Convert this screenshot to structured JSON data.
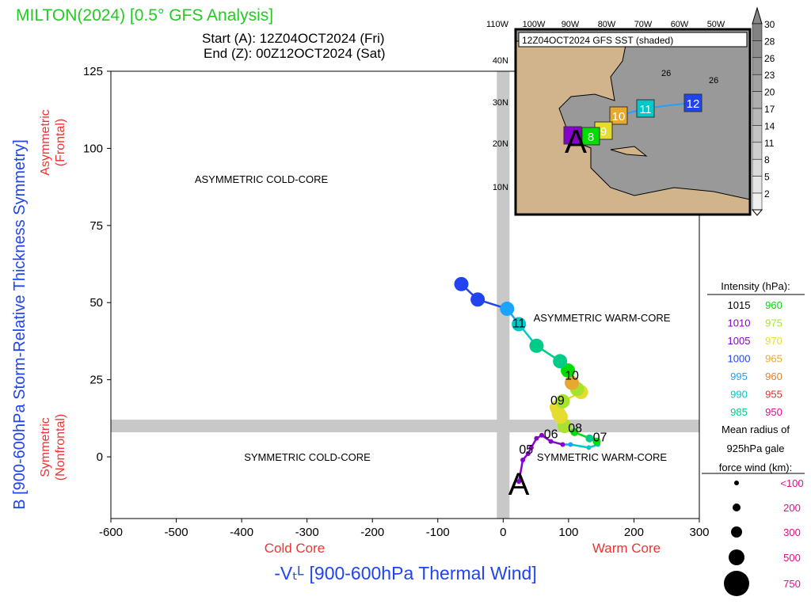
{
  "title": "MILTON(2024) [0.5° GFS Analysis]",
  "start": "Start (A): 12Z04OCT2024 (Fri)",
  "end": "End (Z): 00Z12OCT2024 (Sat)",
  "chart_data": {
    "type": "scatter",
    "xlabel": "-Vₜᴸ [900-600hPa Thermal Wind]",
    "ylabel": "B [900-600hPa Storm-Relative Thickness Symmetry]",
    "xlim": [
      -600,
      300
    ],
    "ylim": [
      -20,
      125
    ],
    "xticks": [
      -600,
      -500,
      -400,
      -300,
      -200,
      -100,
      0,
      100,
      200,
      300
    ],
    "yticks": [
      0,
      25,
      50,
      75,
      100,
      125
    ],
    "x_left_note": "Cold Core",
    "x_right_note": "Warm Core",
    "y_top_note": [
      "Asymmetric",
      "(Frontal)"
    ],
    "y_bottom_note": [
      "Symmetric",
      "(Nonfrontal)"
    ],
    "quadrants": {
      "tl": "ASYMMETRIC COLD-CORE",
      "tr": "ASYMMETRIC WARM-CORE",
      "bl": "SYMMETRIC COLD-CORE",
      "br": "SYMMETRIC WARM-CORE"
    },
    "start_marker": "A",
    "track": [
      {
        "x": 24,
        "y": -8,
        "c": "#8800cc",
        "r": 1
      },
      {
        "x": 30,
        "y": -1,
        "c": "#8800cc",
        "r": 1
      },
      {
        "x": 38,
        "y": 1,
        "c": "#8800cc",
        "r": 1
      },
      {
        "x": 43,
        "y": 3,
        "c": "#8800cc",
        "r": 1
      },
      {
        "x": 51,
        "y": 6,
        "c": "#8800cc",
        "r": 1
      },
      {
        "x": 59,
        "y": 7,
        "c": "#8800cc",
        "r": 1
      },
      {
        "x": 73,
        "y": 5,
        "c": "#8800cc",
        "r": 1
      },
      {
        "x": 91,
        "y": 4,
        "c": "#8800cc",
        "r": 1
      },
      {
        "x": 103,
        "y": 4,
        "c": "#1aa3ff",
        "r": 1
      },
      {
        "x": 131,
        "y": 3,
        "c": "#00c8c8",
        "r": 1
      },
      {
        "x": 145,
        "y": 4,
        "c": "#00c8c8",
        "r": 1
      },
      {
        "x": 143,
        "y": 5,
        "c": "#00dd00",
        "r": 2
      },
      {
        "x": 132,
        "y": 6,
        "c": "#00cc88",
        "r": 2
      },
      {
        "x": 109,
        "y": 8,
        "c": "#00dd00",
        "r": 2
      },
      {
        "x": 94,
        "y": 10,
        "c": "#a6e22e",
        "r": 3
      },
      {
        "x": 88,
        "y": 13,
        "c": "#e6dc30",
        "r": 3
      },
      {
        "x": 85,
        "y": 14,
        "c": "#e6dc30",
        "r": 3
      },
      {
        "x": 82,
        "y": 16,
        "c": "#e6dc30",
        "r": 3
      },
      {
        "x": 91,
        "y": 18,
        "c": "#a6e22e",
        "r": 3
      },
      {
        "x": 119,
        "y": 21,
        "c": "#e6dc30",
        "r": 3
      },
      {
        "x": 113,
        "y": 22,
        "c": "#a6e22e",
        "r": 3
      },
      {
        "x": 105,
        "y": 24,
        "c": "#e6a830",
        "r": 3
      },
      {
        "x": 99,
        "y": 28,
        "c": "#00dd00",
        "r": 3
      },
      {
        "x": 87,
        "y": 31,
        "c": "#00cc88",
        "r": 3
      },
      {
        "x": 51,
        "y": 36,
        "c": "#00cc88",
        "r": 3
      },
      {
        "x": 24,
        "y": 43,
        "c": "#00c8c8",
        "r": 3
      },
      {
        "x": 6,
        "y": 48,
        "c": "#1aa3ff",
        "r": 3
      },
      {
        "x": -39,
        "y": 51,
        "c": "#2244ee",
        "r": 3
      },
      {
        "x": -64,
        "y": 56,
        "c": "#2244ee",
        "r": 3
      }
    ],
    "day_labels": [
      {
        "t": "05",
        "x": 35,
        "y": 1
      },
      {
        "t": "06",
        "x": 73,
        "y": 6
      },
      {
        "t": "07",
        "x": 148,
        "y": 5
      },
      {
        "t": "08",
        "x": 110,
        "y": 8
      },
      {
        "t": "09",
        "x": 83,
        "y": 17
      },
      {
        "t": "10",
        "x": 105,
        "y": 25
      },
      {
        "t": "11",
        "x": 24,
        "y": 42
      }
    ]
  },
  "legend": {
    "intensity_title": "Intensity (hPa):",
    "intensity": [
      [
        "1015",
        "#000000",
        "960",
        "#00dd00"
      ],
      [
        "1010",
        "#8800cc",
        "975",
        "#a6e22e"
      ],
      [
        "1005",
        "#8800cc",
        "970",
        "#e6dc30"
      ],
      [
        "1000",
        "#2244ee",
        "965",
        "#e6a830"
      ],
      [
        "995",
        "#1aa3ff",
        "960",
        "#e67e22"
      ],
      [
        "990",
        "#00c8c8",
        "955",
        "#e03030"
      ],
      [
        "985",
        "#00cc88",
        "950",
        "#dd1188"
      ]
    ],
    "radius_title": [
      "Mean radius of",
      "925hPa gale",
      "force wind (km):"
    ],
    "radius": [
      "<100",
      "200",
      "300",
      "500",
      "750"
    ]
  },
  "inset": {
    "title": "12Z04OCT2024 GFS SST (shaded)",
    "lon": [
      "110W",
      "100W",
      "90W",
      "80W",
      "70W",
      "60W",
      "50W"
    ],
    "lat": [
      "40N",
      "30N",
      "20N",
      "10N"
    ],
    "colorbar": [
      "30",
      "28",
      "26",
      "23",
      "20",
      "17",
      "14",
      "11",
      "8",
      "5",
      "2"
    ],
    "contour": "26",
    "boxes": [
      {
        "t": "12",
        "c": "#2244ee"
      },
      {
        "t": "11",
        "c": "#00c8c8"
      },
      {
        "t": "10",
        "c": "#e6a830"
      },
      {
        "t": "9",
        "c": "#e6dc30"
      },
      {
        "t": "8",
        "c": "#00dd00"
      }
    ],
    "start": "A"
  }
}
